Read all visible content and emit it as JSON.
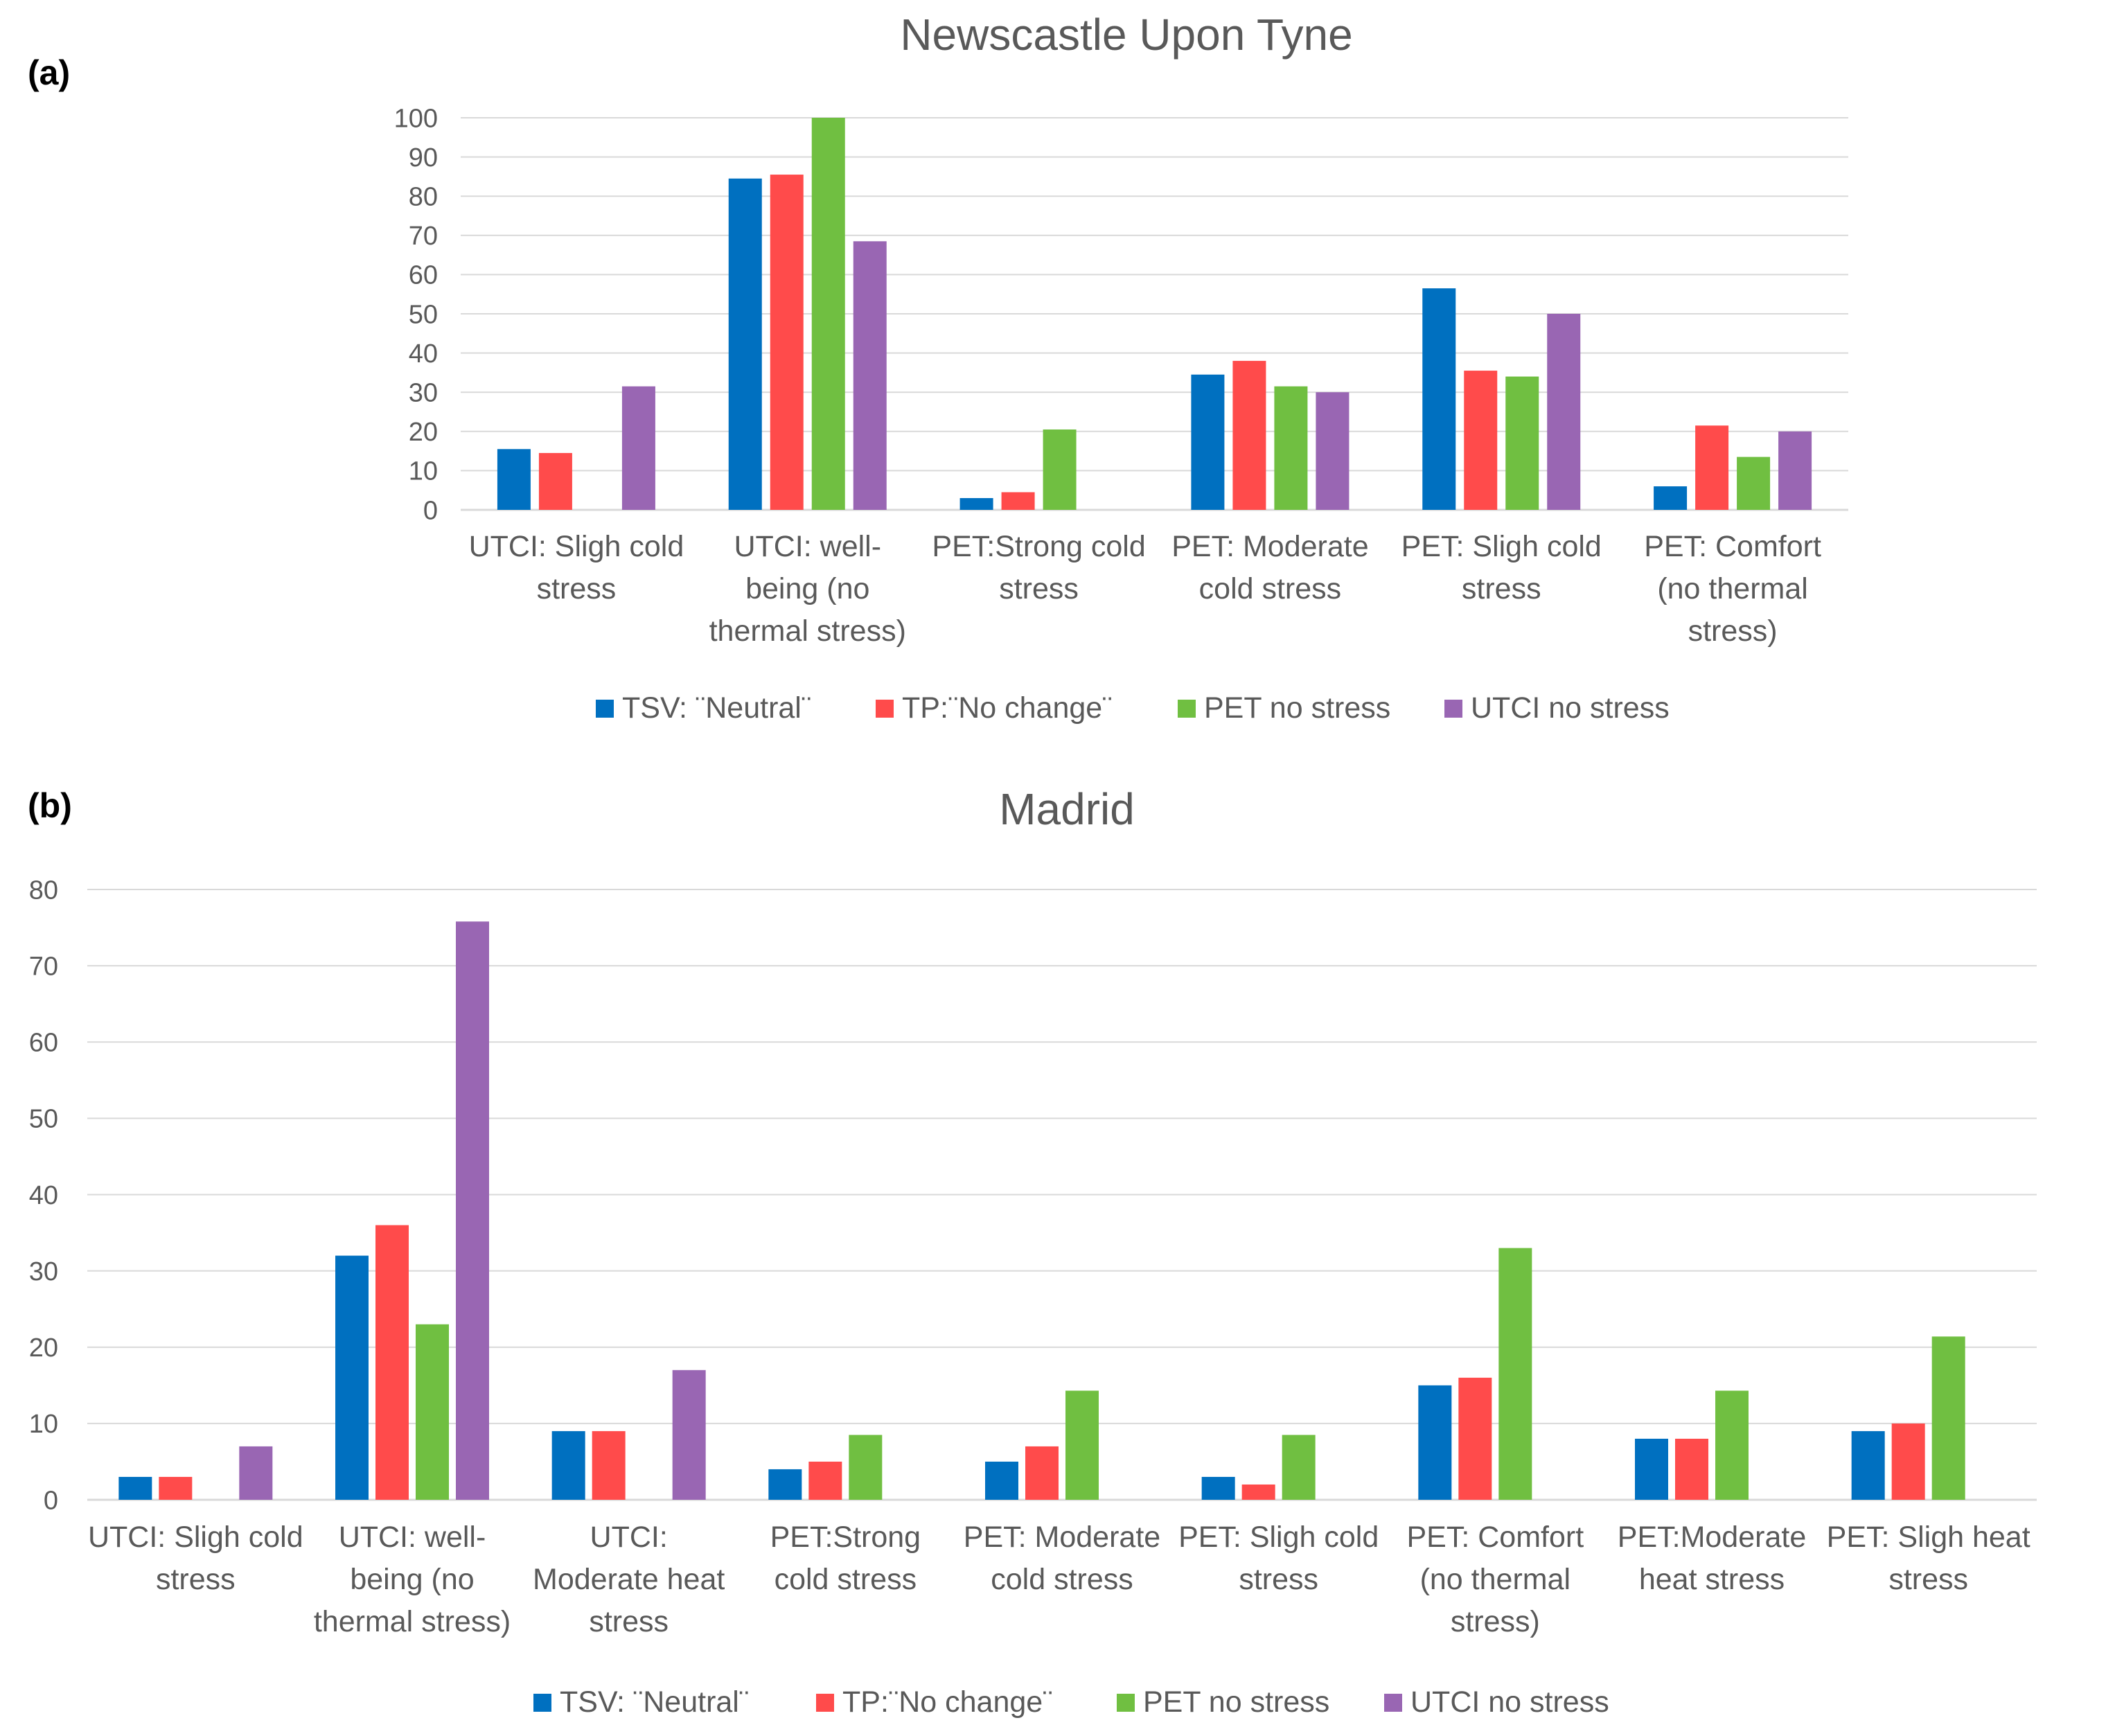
{
  "series_colors": [
    "#0070C0",
    "#FF4B4B",
    "#70BF41",
    "#9966B3"
  ],
  "grid_color": "#D9D9D9",
  "chart_data": [
    {
      "panel_label": "(a)",
      "type": "bar",
      "title": "Newscastle Upon Tyne",
      "xlabel": "",
      "ylabel": "",
      "ylim": [
        0,
        100
      ],
      "yticks": [
        0,
        10,
        20,
        30,
        40,
        50,
        60,
        70,
        80,
        90,
        100
      ],
      "grid": true,
      "legend_position": "bottom",
      "categories": [
        [
          "UTCI: Sligh cold",
          "stress"
        ],
        [
          "UTCI: well-",
          "being (no",
          "thermal stress)"
        ],
        [
          "PET:Strong cold",
          "stress"
        ],
        [
          "PET: Moderate",
          "cold stress"
        ],
        [
          "PET: Sligh cold",
          "stress"
        ],
        [
          "PET: Comfort",
          "(no thermal",
          "stress)"
        ]
      ],
      "series": [
        {
          "name": "TSV: ¨Neutral¨",
          "values": [
            15.5,
            84.5,
            3,
            34.5,
            56.5,
            6
          ]
        },
        {
          "name": "TP:¨No change¨",
          "values": [
            14.5,
            85.5,
            4.5,
            38,
            35.5,
            21.5
          ]
        },
        {
          "name": "PET no stress",
          "values": [
            null,
            100,
            20.5,
            31.5,
            34,
            13.5
          ]
        },
        {
          "name": "UTCI no stress",
          "values": [
            31.5,
            68.5,
            null,
            30,
            50,
            20
          ]
        }
      ]
    },
    {
      "panel_label": "(b)",
      "type": "bar",
      "title": "Madrid",
      "xlabel": "",
      "ylabel": "",
      "ylim": [
        0,
        80
      ],
      "yticks": [
        0,
        10,
        20,
        30,
        40,
        50,
        60,
        70,
        80
      ],
      "grid": true,
      "legend_position": "bottom",
      "categories": [
        [
          "UTCI: Sligh cold",
          "stress"
        ],
        [
          "UTCI: well-",
          "being (no",
          "thermal stress)"
        ],
        [
          "UTCI:",
          "Moderate heat",
          "stress"
        ],
        [
          "PET:Strong",
          "cold stress"
        ],
        [
          "PET: Moderate",
          "cold stress"
        ],
        [
          "PET: Sligh cold",
          "stress"
        ],
        [
          "PET: Comfort",
          "(no thermal",
          "stress)"
        ],
        [
          "PET:Moderate",
          "heat stress"
        ],
        [
          "PET: Sligh heat",
          "stress"
        ]
      ],
      "series": [
        {
          "name": "TSV: ¨Neutral¨",
          "values": [
            3,
            32,
            9,
            4,
            5,
            3,
            15,
            8,
            9
          ]
        },
        {
          "name": "TP:¨No change¨",
          "values": [
            3,
            36,
            9,
            5,
            7,
            2,
            16,
            8,
            10
          ]
        },
        {
          "name": "PET no stress",
          "values": [
            null,
            23,
            null,
            8.5,
            14.3,
            8.5,
            33,
            14.3,
            21.4
          ]
        },
        {
          "name": "UTCI no stress",
          "values": [
            7,
            75.8,
            17,
            null,
            null,
            null,
            null,
            null,
            null
          ]
        }
      ]
    }
  ]
}
